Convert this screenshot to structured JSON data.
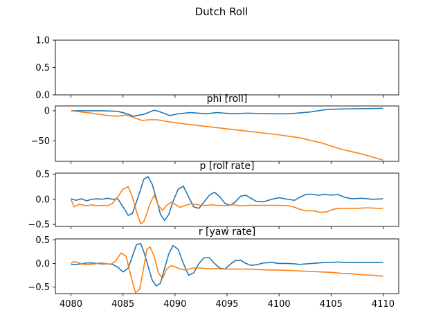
{
  "figure": {
    "title": "Dutch Roll",
    "series_colors": [
      "#1f77b4",
      "#ff7f0e"
    ]
  },
  "chart_data": [
    {
      "type": "line",
      "title": "",
      "xlim": [
        4078.5,
        4111.5
      ],
      "ylim": [
        0,
        1
      ],
      "yticks": [
        0,
        0.5,
        1
      ],
      "ytick_labels": [
        "0.0",
        "0.5",
        "1.0"
      ],
      "show_x_tick_labels": false,
      "series": []
    },
    {
      "type": "line",
      "title": "phi [roll]",
      "xlim": [
        4078.5,
        4111.5
      ],
      "ylim": [
        -84,
        8
      ],
      "yticks": [
        0,
        -50
      ],
      "ytick_labels": [
        "0",
        "−50"
      ],
      "show_x_tick_labels": false,
      "series": [
        {
          "color": "#1f77b4",
          "x": [
            4080,
            4083,
            4084.5,
            4085.2,
            4086,
            4087,
            4088,
            4088.6,
            4089.5,
            4090.3,
            4091.5,
            4093,
            4094,
            4095.5,
            4097,
            4099,
            4101,
            4103,
            4104.5,
            4106,
            4108,
            4110
          ],
          "y": [
            0,
            0,
            -1,
            -4,
            -9,
            -6,
            1,
            -2,
            -8,
            -5,
            -3,
            -5,
            -3,
            -5,
            -4,
            -5,
            -5,
            -2,
            2,
            3,
            3.5,
            4
          ]
        },
        {
          "color": "#ff7f0e",
          "x": [
            4080,
            4082,
            4083.5,
            4084.5,
            4085.3,
            4086,
            4086.8,
            4087.5,
            4088.3,
            4089.3,
            4091,
            4094,
            4097,
            4100,
            4102,
            4104,
            4106,
            4108,
            4110
          ],
          "y": [
            0,
            -4,
            -8,
            -9,
            -7,
            -11,
            -16,
            -15,
            -15,
            -18,
            -22,
            -28,
            -34,
            -40,
            -45,
            -53,
            -64,
            -72,
            -82
          ]
        }
      ]
    },
    {
      "type": "line",
      "title": "p [roll rate]",
      "xlim": [
        4078.5,
        4111.5
      ],
      "ylim": [
        -0.54,
        0.52
      ],
      "yticks": [
        0.5,
        0,
        -0.5
      ],
      "ytick_labels": [
        "0.5",
        "0.0",
        "−0.5"
      ],
      "show_x_tick_labels": false,
      "series": [
        {
          "color": "#1f77b4",
          "x": [
            4080,
            4080.5,
            4081,
            4081.5,
            4082,
            4082.5,
            4083,
            4083.5,
            4084,
            4084.5,
            4085,
            4085.5,
            4085.9,
            4086.3,
            4086.7,
            4087,
            4087.4,
            4087.8,
            4088.2,
            4088.6,
            4089,
            4089.4,
            4089.8,
            4090.3,
            4090.8,
            4091.3,
            4091.8,
            4092.3,
            4092.8,
            4093.3,
            4093.8,
            4094.3,
            4094.8,
            4095.3,
            4095.8,
            4096.3,
            4096.8,
            4097.3,
            4097.8,
            4098.5,
            4099.3,
            4100,
            4100.8,
            4101.5,
            4102,
            4102.6,
            4103.2,
            4103.8,
            4104.4,
            4105,
            4105.6,
            4106.3,
            4107,
            4108,
            4109,
            4110
          ],
          "y": [
            0.01,
            -0.02,
            0.01,
            -0.03,
            0,
            0.01,
            0,
            0.02,
            0,
            0.01,
            -0.15,
            -0.32,
            -0.28,
            -0.05,
            0.2,
            0.4,
            0.45,
            0.3,
            0.02,
            -0.3,
            -0.42,
            -0.3,
            -0.05,
            0.2,
            0.26,
            0.05,
            -0.15,
            -0.18,
            -0.05,
            0.08,
            0.14,
            0.05,
            -0.08,
            -0.12,
            -0.05,
            0.06,
            0.08,
            0.02,
            -0.04,
            -0.05,
            0,
            0.03,
            0,
            -0.02,
            0.04,
            0.1,
            0.1,
            0.08,
            0.1,
            0.08,
            0.1,
            0.04,
            0.01,
            0.02,
            0,
            0.01
          ]
        },
        {
          "color": "#ff7f0e",
          "x": [
            4080,
            4080.3,
            4080.8,
            4081.5,
            4082,
            4082.5,
            4083,
            4083.5,
            4084,
            4084.5,
            4085,
            4085.5,
            4085.9,
            4086.3,
            4086.7,
            4087,
            4087.3,
            4087.6,
            4088,
            4088.4,
            4088.8,
            4089.2,
            4089.6,
            4090,
            4090.5,
            4091,
            4091.5,
            4092,
            4092.5,
            4093,
            4093.5,
            4094,
            4094.5,
            4095,
            4095.5,
            4096,
            4096.5,
            4097,
            4097.5,
            4098,
            4099,
            4100,
            4101,
            4101.5,
            4102,
            4102.6,
            4103.3,
            4104,
            4104.6,
            4105.2,
            4105.8,
            4106.5,
            4107.5,
            4108.5,
            4109.5,
            4110
          ],
          "y": [
            0,
            -0.15,
            -0.1,
            -0.13,
            -0.11,
            -0.13,
            -0.12,
            -0.13,
            -0.08,
            0.05,
            0.2,
            0.25,
            0.05,
            -0.25,
            -0.49,
            -0.44,
            -0.28,
            -0.08,
            0.08,
            -0.12,
            -0.22,
            -0.12,
            -0.06,
            -0.1,
            -0.16,
            -0.12,
            -0.09,
            -0.1,
            -0.12,
            -0.12,
            -0.11,
            -0.12,
            -0.12,
            -0.13,
            -0.11,
            -0.12,
            -0.13,
            -0.12,
            -0.12,
            -0.12,
            -0.12,
            -0.12,
            -0.13,
            -0.16,
            -0.2,
            -0.23,
            -0.23,
            -0.26,
            -0.25,
            -0.2,
            -0.18,
            -0.18,
            -0.18,
            -0.17,
            -0.18,
            -0.18
          ]
        }
      ]
    },
    {
      "type": "line",
      "title": "r [yaw rate]",
      "xlim": [
        4078.5,
        4111.5
      ],
      "ylim": [
        -0.64,
        0.52
      ],
      "yticks": [
        0.5,
        0,
        -0.5
      ],
      "ytick_labels": [
        "0.5",
        "0.0",
        "−0.5"
      ],
      "show_x_tick_labels": true,
      "xticks": [
        4080,
        4085,
        4090,
        4095,
        4100,
        4105,
        4110
      ],
      "xtick_labels": [
        "4080",
        "4085",
        "4090",
        "4095",
        "4100",
        "4105",
        "4110"
      ],
      "series": [
        {
          "color": "#1f77b4",
          "x": [
            4080,
            4080.5,
            4081,
            4081.5,
            4082,
            4082.5,
            4083,
            4083.5,
            4084,
            4084.5,
            4085,
            4085.5,
            4085.9,
            4086.3,
            4086.7,
            4087,
            4087.4,
            4087.8,
            4088.2,
            4088.6,
            4089,
            4089.4,
            4089.8,
            4090.3,
            4090.8,
            4091.3,
            4091.8,
            4092.3,
            4092.8,
            4093.3,
            4093.8,
            4094.3,
            4094.8,
            4095.3,
            4095.8,
            4096.3,
            4096.8,
            4097.3,
            4097.8,
            4098.5,
            4099.3,
            4100,
            4100.8,
            4101.5,
            4102,
            4102.6,
            4103.2,
            4103.8,
            4104.4,
            4105,
            4105.6,
            4106.3,
            4107,
            4108,
            4109,
            4110
          ],
          "y": [
            -0.02,
            -0.02,
            -0.01,
            0.01,
            0.01,
            0,
            -0.01,
            -0.01,
            -0.02,
            -0.08,
            -0.18,
            -0.1,
            0.15,
            0.4,
            0.42,
            0.25,
            -0.05,
            -0.35,
            -0.48,
            -0.42,
            -0.1,
            0.2,
            0.38,
            0.3,
            0,
            -0.25,
            -0.2,
            0,
            0.12,
            0.12,
            0,
            -0.1,
            -0.12,
            -0.02,
            0.06,
            0.07,
            0,
            -0.04,
            -0.03,
            0.01,
            0.02,
            0,
            0,
            -0.01,
            -0.02,
            -0.01,
            0,
            0.01,
            0.02,
            0.02,
            0.03,
            0.02,
            0.02,
            0.02,
            0.02,
            0.02
          ]
        },
        {
          "color": "#ff7f0e",
          "x": [
            4080,
            4080.3,
            4080.8,
            4081.3,
            4081.8,
            4082.3,
            4082.8,
            4083.3,
            4083.8,
            4084.3,
            4084.8,
            4085.3,
            4085.8,
            4086.2,
            4086.6,
            4087,
            4087.3,
            4087.6,
            4088,
            4088.4,
            4088.8,
            4089.2,
            4089.6,
            4090,
            4090.5,
            4091,
            4091.5,
            4092,
            4092.5,
            4093,
            4093.5,
            4094,
            4094.5,
            4095,
            4096,
            4097,
            4098,
            4099,
            4100,
            4101,
            4102,
            4103,
            4104,
            4105,
            4106,
            4107,
            4108,
            4109,
            4110
          ],
          "y": [
            0,
            0.04,
            0.01,
            -0.02,
            -0.02,
            -0.01,
            0.01,
            0,
            -0.02,
            0.05,
            0.22,
            0.15,
            -0.3,
            -0.62,
            -0.55,
            -0.08,
            0.3,
            0.35,
            0.15,
            -0.2,
            -0.32,
            -0.12,
            -0.05,
            -0.07,
            -0.12,
            -0.14,
            -0.11,
            -0.09,
            -0.1,
            -0.11,
            -0.11,
            -0.11,
            -0.12,
            -0.12,
            -0.12,
            -0.12,
            -0.13,
            -0.14,
            -0.14,
            -0.15,
            -0.16,
            -0.17,
            -0.18,
            -0.19,
            -0.21,
            -0.22,
            -0.24,
            -0.25,
            -0.27
          ]
        }
      ]
    }
  ]
}
